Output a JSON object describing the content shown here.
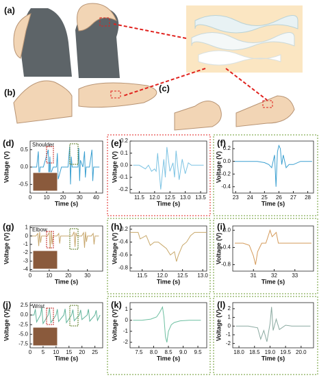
{
  "illustration": {
    "labels": [
      "(a)",
      "(b)",
      "(c)"
    ]
  },
  "chart_data": [
    {
      "type": "line",
      "label": "(d)",
      "annotation": "Shoulder",
      "x_label": "Time (s)",
      "y_label": "Voltage (V)",
      "x": [
        0,
        2,
        4,
        5,
        5.5,
        6,
        8,
        11,
        11.5,
        12,
        12.5,
        14,
        16,
        16.5,
        17,
        19,
        23,
        24,
        24.5,
        25,
        25.5,
        27,
        29,
        29.5,
        30,
        30.5,
        32,
        33,
        33.5,
        34,
        36,
        37.5,
        38,
        38.5,
        40,
        42
      ],
      "series": [
        {
          "color": "#3a9fd0",
          "values": [
            0,
            0,
            0,
            0.45,
            -0.4,
            0,
            0,
            0.5,
            -0.45,
            0.3,
            -0.2,
            0,
            0,
            0.4,
            -0.35,
            0,
            0,
            0.6,
            -0.5,
            0.3,
            0,
            0,
            0,
            0.55,
            -0.4,
            0.2,
            0,
            0.45,
            -0.3,
            0,
            0,
            0.5,
            -0.4,
            0,
            0,
            0
          ]
        }
      ],
      "xlim": [
        0,
        44
      ],
      "ylim": [
        -0.75,
        0.75
      ],
      "xticks": [
        0,
        10,
        20,
        30,
        40
      ],
      "yticks": [
        0.5,
        {
          "value": 0,
          "label": "0.0"
        },
        -0.5
      ]
    },
    {
      "type": "line",
      "label": "(e)",
      "x_label": "Time (s)",
      "y_label": "Voltage (V)",
      "x": [
        11.3,
        11.5,
        11.7,
        11.8,
        11.9,
        12.0,
        12.05,
        12.1,
        12.2,
        12.3,
        12.35,
        12.4,
        12.5,
        12.6,
        12.65,
        12.7,
        12.8,
        12.9,
        13.0,
        13.1,
        13.2,
        13.4,
        13.6
      ],
      "series": [
        {
          "color": "#7cc3e3",
          "values": [
            0,
            0,
            -0.03,
            0,
            -0.05,
            -0.03,
            -0.05,
            0.1,
            -0.2,
            0.05,
            -0.1,
            0.15,
            -0.05,
            0.02,
            -0.1,
            0.12,
            -0.12,
            0.05,
            -0.07,
            0.02,
            0,
            0,
            0
          ]
        }
      ],
      "xlim": [
        11.2,
        13.7
      ],
      "ylim": [
        -0.23,
        0.2
      ],
      "xticks": [
        11.5,
        {
          "value": 12,
          "label": "12.0"
        },
        12.5,
        {
          "value": 13,
          "label": "13.0"
        },
        13.5
      ],
      "yticks": [
        0.2,
        0.1,
        {
          "value": 0,
          "label": "0.0"
        },
        -0.1,
        -0.2
      ]
    },
    {
      "type": "line",
      "label": "(f)",
      "x_label": "Time (s)",
      "y_label": "Voltage (V)",
      "x": [
        22.9,
        23.5,
        24,
        24.5,
        25,
        25.3,
        25.5,
        25.7,
        25.8,
        25.9,
        26.0,
        26.1,
        26.2,
        26.3,
        26.5,
        26.7,
        27,
        27.5,
        28,
        28.3
      ],
      "series": [
        {
          "color": "#3a9fd0",
          "values": [
            0,
            0,
            0,
            0,
            -0.02,
            -0.05,
            -0.1,
            0.1,
            -0.4,
            0.15,
            0.25,
            0.2,
            -0.05,
            0.1,
            -0.1,
            -0.05,
            -0.05,
            0,
            0,
            0
          ]
        }
      ],
      "xlim": [
        22.8,
        28.4
      ],
      "ylim": [
        -0.5,
        0.32
      ],
      "xticks": [
        23,
        24,
        25,
        26,
        27,
        28
      ],
      "yticks": [
        0.2,
        {
          "value": 0,
          "label": "0.0"
        },
        -0.2,
        -0.4
      ]
    },
    {
      "type": "line",
      "label": "(g)",
      "annotation": "Elbow",
      "x_label": "Time (s)",
      "y_label": "Voltage (V)",
      "x": [
        0,
        3,
        4,
        4.5,
        5,
        5.5,
        6,
        9,
        10,
        10.5,
        11,
        11.5,
        12,
        14,
        15,
        15.5,
        16,
        19,
        22,
        23,
        23.5,
        24,
        24.5,
        27,
        28,
        28.5,
        29,
        29.5,
        30,
        32,
        33,
        33.5,
        34,
        36
      ],
      "series": [
        {
          "color": "#c7a66b",
          "values": [
            0,
            0,
            0.3,
            -1.2,
            0.5,
            -0.8,
            0,
            0,
            0.4,
            -1.5,
            0.6,
            -1,
            0,
            0,
            0.3,
            -0.9,
            0,
            0,
            0,
            0.5,
            -1.3,
            0.4,
            0,
            0,
            0.4,
            -1.4,
            0.5,
            -0.7,
            0,
            0,
            0.3,
            -1,
            0,
            0
          ]
        }
      ],
      "xlim": [
        0,
        38
      ],
      "ylim": [
        -4.2,
        1.2
      ],
      "xticks": [
        0,
        10,
        20,
        30
      ],
      "yticks": [
        1,
        0,
        -1,
        -2,
        -3,
        -4
      ]
    },
    {
      "type": "line",
      "label": "(h)",
      "x_label": "Time (s)",
      "y_label": "Voltage (V)",
      "x": [
        11.2,
        11.4,
        11.45,
        11.6,
        11.7,
        11.8,
        11.9,
        12.0,
        12.1,
        12.2,
        12.3,
        12.35,
        12.4,
        12.5,
        12.6,
        12.7,
        12.8,
        13.0,
        13.1
      ],
      "series": [
        {
          "color": "#c8a86a",
          "values": [
            -0.25,
            -0.25,
            -0.35,
            -0.3,
            -0.45,
            -0.4,
            -0.4,
            -0.45,
            -0.5,
            -0.6,
            -0.55,
            -0.7,
            -0.6,
            -0.45,
            -0.4,
            -0.3,
            -0.25,
            -0.25,
            -0.25
          ]
        }
      ],
      "xlim": [
        11.2,
        13.1
      ],
      "ylim": [
        -0.85,
        -0.15
      ],
      "xticks": [
        11.5,
        {
          "value": 12,
          "label": "12.0"
        },
        12.5,
        {
          "value": 13,
          "label": "13.0"
        }
      ],
      "yticks": [
        -0.2,
        -0.4,
        -0.6,
        -0.8
      ]
    },
    {
      "type": "line",
      "label": "(i)",
      "x_label": "Time (s)",
      "y_label": "Voltage (V)",
      "x": [
        30.1,
        30.5,
        30.8,
        31.0,
        31.1,
        31.2,
        31.4,
        31.6,
        31.8,
        31.9,
        32.0,
        32.1,
        32.2,
        32.3,
        32.5,
        33,
        33.5,
        33.8
      ],
      "series": [
        {
          "color": "#d49a5a",
          "values": [
            -0.3,
            -0.3,
            -0.35,
            -0.6,
            -0.8,
            -0.5,
            -0.3,
            -0.3,
            0.0,
            -0.15,
            -0.1,
            -0.05,
            -0.3,
            -0.3,
            -0.3,
            -0.3,
            -0.3,
            -0.3
          ]
        }
      ],
      "xlim": [
        30,
        33.9
      ],
      "ylim": [
        -0.95,
        0.1
      ],
      "xticks": [
        31,
        32,
        33
      ],
      "yticks": [
        {
          "value": 0,
          "label": "0.0"
        },
        -0.4,
        -0.8
      ]
    },
    {
      "type": "line",
      "label": "(j)",
      "annotation": "Wrist",
      "x_label": "Time (s)",
      "y_label": "Voltage (V)",
      "x": [
        0,
        1.5,
        2,
        2.5,
        4,
        4.5,
        5,
        7,
        7.5,
        8,
        10,
        10.5,
        11,
        13,
        13.5,
        14,
        16,
        16.5,
        17,
        19,
        19.5,
        20,
        22,
        22.5,
        23,
        25,
        25.5,
        26,
        27
      ],
      "series": [
        {
          "color": "#5fb39a",
          "values": [
            0,
            0,
            1.5,
            -1.8,
            0,
            2,
            -2.2,
            0,
            1.8,
            -2,
            0,
            1.5,
            -1.7,
            0,
            1.6,
            -2,
            0,
            1.4,
            -1.5,
            0,
            1.3,
            -1.2,
            0,
            1.5,
            -1.6,
            0,
            1.2,
            -1.4,
            0
          ]
        }
      ],
      "xlim": [
        0,
        28
      ],
      "ylim": [
        -8.5,
        3.2
      ],
      "xticks": [
        0,
        5,
        10,
        15,
        20,
        25
      ],
      "yticks": [
        2.5,
        {
          "value": 0,
          "label": "0.0"
        },
        -2.5,
        {
          "value": -5,
          "label": "-5.0"
        },
        -7.5
      ]
    },
    {
      "type": "line",
      "label": "(k)",
      "x_label": "Time (s)",
      "y_label": "Voltage (V)",
      "x": [
        7.3,
        7.6,
        7.9,
        8.1,
        8.2,
        8.3,
        8.35,
        8.4,
        8.45,
        8.5,
        8.6,
        8.7,
        8.9,
        9.2,
        9.6
      ],
      "series": [
        {
          "color": "#6cbfa0",
          "values": [
            0,
            0,
            0.1,
            0.3,
            0.7,
            1.2,
            0.3,
            -1.5,
            -2.0,
            -1.0,
            -0.4,
            -0.2,
            -0.05,
            0,
            0
          ]
        }
      ],
      "xlim": [
        7.2,
        9.8
      ],
      "ylim": [
        -2.5,
        1.6
      ],
      "xticks": [
        7.5,
        {
          "value": 8,
          "label": "8.0"
        },
        8.5,
        {
          "value": 9,
          "label": "9.0"
        },
        9.5
      ],
      "yticks": [
        1,
        0,
        -1,
        -2
      ]
    },
    {
      "type": "line",
      "label": "(l)",
      "x_label": "Time (s)",
      "y_label": "Voltage (V)",
      "x": [
        17.9,
        18.3,
        18.6,
        18.7,
        18.8,
        18.9,
        19.0,
        19.05,
        19.1,
        19.2,
        19.3,
        19.5,
        19.7,
        20.0,
        20.3
      ],
      "series": [
        {
          "color": "#8aa9a0",
          "values": [
            0,
            0,
            -0.2,
            -1.5,
            -0.5,
            -1.8,
            0.3,
            2.2,
            -0.5,
            0.8,
            -0.4,
            0.1,
            0,
            0,
            0
          ]
        }
      ],
      "xlim": [
        17.8,
        20.4
      ],
      "ylim": [
        -2.5,
        2.7
      ],
      "xticks": [
        {
          "value": 18,
          "label": "18.0"
        },
        18.5,
        {
          "value": 19,
          "label": "19.0"
        },
        19.5,
        {
          "value": 20,
          "label": "20.0"
        }
      ],
      "yticks": [
        2,
        1,
        0,
        -1,
        -2
      ]
    }
  ]
}
